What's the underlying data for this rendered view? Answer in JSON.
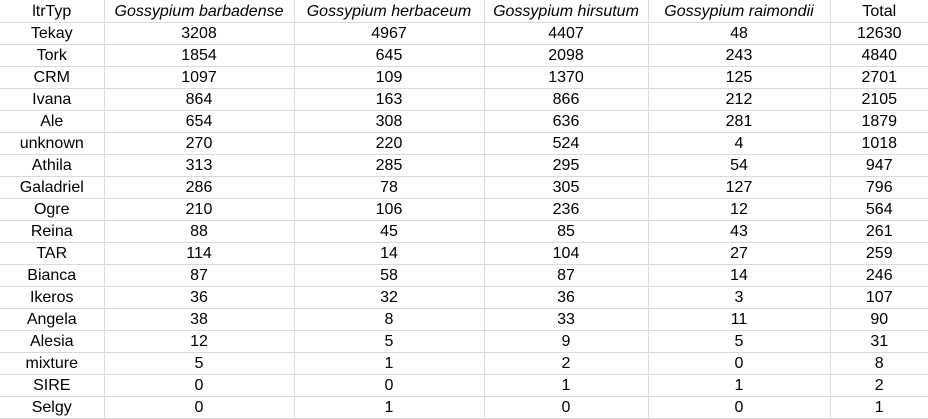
{
  "table": {
    "headers": [
      {
        "label": "ltrTyp",
        "italic": false
      },
      {
        "label": "Gossypium barbadense",
        "italic": true
      },
      {
        "label": "Gossypium herbaceum",
        "italic": true
      },
      {
        "label": "Gossypium hirsutum",
        "italic": true
      },
      {
        "label": "Gossypium raimondii",
        "italic": true
      },
      {
        "label": "Total",
        "italic": false
      }
    ],
    "rows": [
      [
        "Tekay",
        "3208",
        "4967",
        "4407",
        "48",
        "12630"
      ],
      [
        "Tork",
        "1854",
        "645",
        "2098",
        "243",
        "4840"
      ],
      [
        "CRM",
        "1097",
        "109",
        "1370",
        "125",
        "2701"
      ],
      [
        "Ivana",
        "864",
        "163",
        "866",
        "212",
        "2105"
      ],
      [
        "Ale",
        "654",
        "308",
        "636",
        "281",
        "1879"
      ],
      [
        "unknown",
        "270",
        "220",
        "524",
        "4",
        "1018"
      ],
      [
        "Athila",
        "313",
        "285",
        "295",
        "54",
        "947"
      ],
      [
        "Galadriel",
        "286",
        "78",
        "305",
        "127",
        "796"
      ],
      [
        "Ogre",
        "210",
        "106",
        "236",
        "12",
        "564"
      ],
      [
        "Reina",
        "88",
        "45",
        "85",
        "43",
        "261"
      ],
      [
        "TAR",
        "114",
        "14",
        "104",
        "27",
        "259"
      ],
      [
        "Bianca",
        "87",
        "58",
        "87",
        "14",
        "246"
      ],
      [
        "Ikeros",
        "36",
        "32",
        "36",
        "3",
        "107"
      ],
      [
        "Angela",
        "38",
        "8",
        "33",
        "11",
        "90"
      ],
      [
        "Alesia",
        "12",
        "5",
        "9",
        "5",
        "31"
      ],
      [
        "mixture",
        "5",
        "1",
        "2",
        "0",
        "8"
      ],
      [
        "SIRE",
        "0",
        "0",
        "1",
        "1",
        "2"
      ],
      [
        "Selgy",
        "0",
        "1",
        "0",
        "0",
        "1"
      ]
    ]
  },
  "colors": {
    "grid": "#d9d9d9",
    "text": "#000000",
    "background": "#ffffff"
  }
}
